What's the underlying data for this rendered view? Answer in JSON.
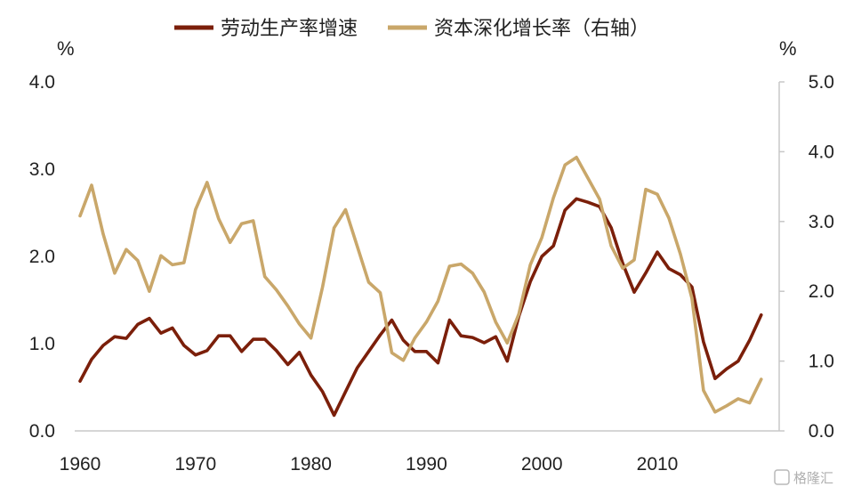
{
  "chart_data": {
    "type": "line",
    "x_label": "",
    "y_left_unit": "%",
    "y_right_unit": "%",
    "y_left_range": [
      0,
      4
    ],
    "y_right_range": [
      0,
      5
    ],
    "y_left_ticks": [
      "0.0",
      "1.0",
      "2.0",
      "3.0",
      "4.0"
    ],
    "y_right_ticks": [
      "0.0",
      "1.0",
      "2.0",
      "3.0",
      "4.0",
      "5.0"
    ],
    "x_range": [
      1960,
      2020
    ],
    "x_ticks": [
      "1960",
      "1970",
      "1980",
      "1990",
      "2000",
      "2010"
    ],
    "legend_position": "top",
    "grid": false,
    "series": [
      {
        "name": "劳动生产率增速",
        "axis": "left",
        "color": "#7b1f0a",
        "x": [
          1960,
          1961,
          1962,
          1963,
          1964,
          1965,
          1966,
          1967,
          1968,
          1969,
          1970,
          1971,
          1972,
          1973,
          1974,
          1975,
          1976,
          1977,
          1978,
          1979,
          1980,
          1981,
          1982,
          1983,
          1984,
          1985,
          1986,
          1987,
          1988,
          1989,
          1990,
          1991,
          1992,
          1993,
          1994,
          1995,
          1996,
          1997,
          1998,
          1999,
          2000,
          2001,
          2002,
          2003,
          2004,
          2005,
          2006,
          2007,
          2008,
          2009,
          2010,
          2011,
          2012,
          2013,
          2014,
          2015,
          2016,
          2017,
          2018,
          2019
        ],
        "y": [
          0.57,
          0.82,
          0.98,
          1.08,
          1.06,
          1.22,
          1.29,
          1.12,
          1.18,
          0.98,
          0.87,
          0.92,
          1.09,
          1.09,
          0.91,
          1.05,
          1.05,
          0.92,
          0.76,
          0.9,
          0.64,
          0.45,
          0.18,
          0.45,
          0.72,
          0.91,
          1.1,
          1.27,
          1.04,
          0.91,
          0.91,
          0.78,
          1.27,
          1.09,
          1.07,
          1.01,
          1.08,
          0.8,
          1.31,
          1.71,
          2.0,
          2.12,
          2.53,
          2.66,
          2.62,
          2.57,
          2.33,
          1.92,
          1.59,
          1.81,
          2.05,
          1.86,
          1.79,
          1.65,
          1.02,
          0.6,
          0.71,
          0.8,
          1.04,
          1.33
        ]
      },
      {
        "name": "资本深化增长率（右轴）",
        "axis": "right",
        "color": "#c9a76a",
        "x": [
          1960,
          1961,
          1962,
          1963,
          1964,
          1965,
          1966,
          1967,
          1968,
          1969,
          1970,
          1971,
          1972,
          1973,
          1974,
          1975,
          1976,
          1977,
          1978,
          1979,
          1980,
          1981,
          1982,
          1983,
          1984,
          1985,
          1986,
          1987,
          1988,
          1989,
          1990,
          1991,
          1992,
          1993,
          1994,
          1995,
          1996,
          1997,
          1998,
          1999,
          2000,
          2001,
          2002,
          2003,
          2004,
          2005,
          2006,
          2007,
          2008,
          2009,
          2010,
          2011,
          2012,
          2013,
          2014,
          2015,
          2016,
          2017,
          2018,
          2019
        ],
        "y": [
          3.08,
          3.52,
          2.82,
          2.26,
          2.6,
          2.44,
          2.0,
          2.51,
          2.38,
          2.41,
          3.17,
          3.56,
          3.04,
          2.7,
          2.97,
          3.01,
          2.21,
          2.02,
          1.79,
          1.53,
          1.33,
          2.06,
          2.91,
          3.17,
          2.65,
          2.13,
          1.98,
          1.12,
          1.01,
          1.33,
          1.56,
          1.86,
          2.36,
          2.39,
          2.26,
          1.99,
          1.56,
          1.26,
          1.67,
          2.38,
          2.77,
          3.34,
          3.81,
          3.92,
          3.62,
          3.32,
          2.65,
          2.33,
          2.45,
          3.46,
          3.39,
          3.05,
          2.53,
          1.9,
          0.58,
          0.27,
          0.36,
          0.46,
          0.4,
          0.74
        ]
      }
    ]
  },
  "watermark": "格隆汇"
}
